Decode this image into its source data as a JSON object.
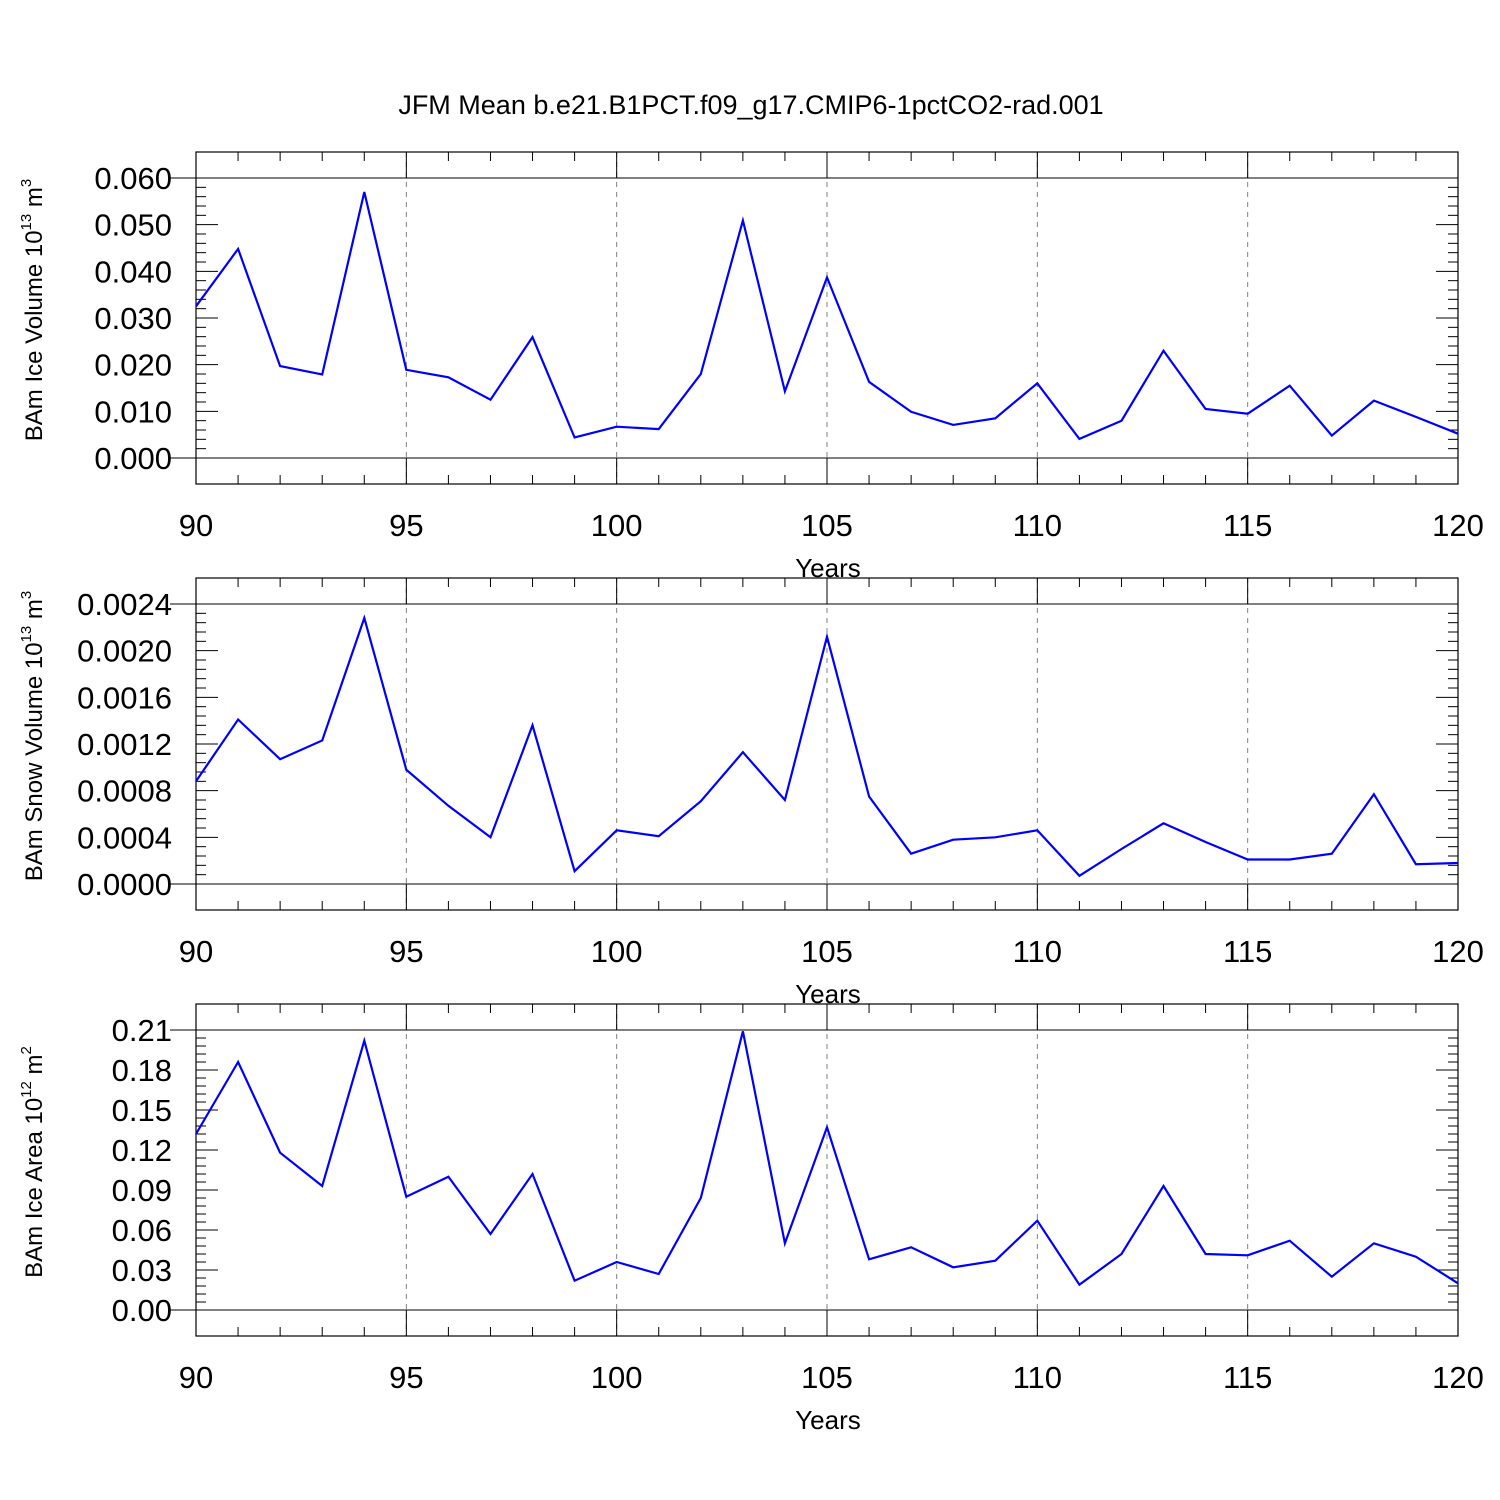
{
  "title": "JFM Mean b.e21.B1PCT.f09_g17.CMIP6-1pctCO2-rad.001",
  "line_color": "#0000ff",
  "chart_data": [
    {
      "type": "line",
      "ylabel": {
        "text": "BAm Ice Volume 10",
        "sup": "13",
        "unit": " m",
        "unit_sup": "3"
      },
      "xlabel": "Years",
      "xlim": [
        90,
        120
      ],
      "ylim": [
        0,
        0.06
      ],
      "xticks": [
        "90",
        "95",
        "100",
        "105",
        "110",
        "115",
        "120"
      ],
      "yticks": [
        "0.000",
        "0.010",
        "0.020",
        "0.030",
        "0.040",
        "0.050",
        "0.060"
      ],
      "x": [
        90,
        91,
        92,
        93,
        94,
        95,
        96,
        97,
        98,
        99,
        100,
        101,
        102,
        103,
        104,
        105,
        106,
        107,
        108,
        109,
        110,
        111,
        112,
        113,
        114,
        115,
        116,
        117,
        118,
        119,
        120
      ],
      "values": [
        0.0325,
        0.0448,
        0.0197,
        0.0179,
        0.057,
        0.0189,
        0.0173,
        0.0125,
        0.0259,
        0.0044,
        0.0067,
        0.0062,
        0.018,
        0.0509,
        0.0143,
        0.0387,
        0.0163,
        0.0099,
        0.0071,
        0.0085,
        0.016,
        0.0041,
        0.008,
        0.023,
        0.0105,
        0.0095,
        0.0155,
        0.0048,
        0.0123,
        0.0088,
        0.0052
      ]
    },
    {
      "type": "line",
      "ylabel": {
        "text": "BAm Snow Volume 10",
        "sup": "13",
        "unit": " m",
        "unit_sup": "3"
      },
      "xlabel": "Years",
      "xlim": [
        90,
        120
      ],
      "ylim": [
        0,
        0.0024
      ],
      "xticks": [
        "90",
        "95",
        "100",
        "105",
        "110",
        "115",
        "120"
      ],
      "yticks": [
        "0.0000",
        "0.0004",
        "0.0008",
        "0.0012",
        "0.0016",
        "0.0020",
        "0.0024"
      ],
      "x": [
        90,
        91,
        92,
        93,
        94,
        95,
        96,
        97,
        98,
        99,
        100,
        101,
        102,
        103,
        104,
        105,
        106,
        107,
        108,
        109,
        110,
        111,
        112,
        113,
        114,
        115,
        116,
        117,
        118,
        119,
        120
      ],
      "values": [
        0.00088,
        0.00141,
        0.00107,
        0.00123,
        0.00228,
        0.00098,
        0.00067,
        0.0004,
        0.00136,
        0.00011,
        0.00046,
        0.00041,
        0.00071,
        0.00113,
        0.00072,
        0.00212,
        0.00075,
        0.00026,
        0.00038,
        0.0004,
        0.00046,
        7e-05,
        0.0003,
        0.00052,
        0.00036,
        0.00021,
        0.00021,
        0.00026,
        0.00077,
        0.00017,
        0.00018
      ]
    },
    {
      "type": "line",
      "ylabel": {
        "text": "BAm Ice Area 10",
        "sup": "12",
        "unit": " m",
        "unit_sup": "2"
      },
      "xlabel": "Years",
      "xlim": [
        90,
        120
      ],
      "ylim": [
        0,
        0.21
      ],
      "xticks": [
        "90",
        "95",
        "100",
        "105",
        "110",
        "115",
        "120"
      ],
      "yticks": [
        "0.00",
        "0.03",
        "0.06",
        "0.09",
        "0.12",
        "0.15",
        "0.18",
        "0.21"
      ],
      "x": [
        90,
        91,
        92,
        93,
        94,
        95,
        96,
        97,
        98,
        99,
        100,
        101,
        102,
        103,
        104,
        105,
        106,
        107,
        108,
        109,
        110,
        111,
        112,
        113,
        114,
        115,
        116,
        117,
        118,
        119,
        120
      ],
      "values": [
        0.132,
        0.186,
        0.118,
        0.093,
        0.202,
        0.085,
        0.1,
        0.057,
        0.102,
        0.022,
        0.036,
        0.027,
        0.084,
        0.209,
        0.05,
        0.137,
        0.038,
        0.047,
        0.032,
        0.037,
        0.067,
        0.019,
        0.042,
        0.093,
        0.042,
        0.041,
        0.052,
        0.025,
        0.05,
        0.04,
        0.02
      ]
    }
  ]
}
